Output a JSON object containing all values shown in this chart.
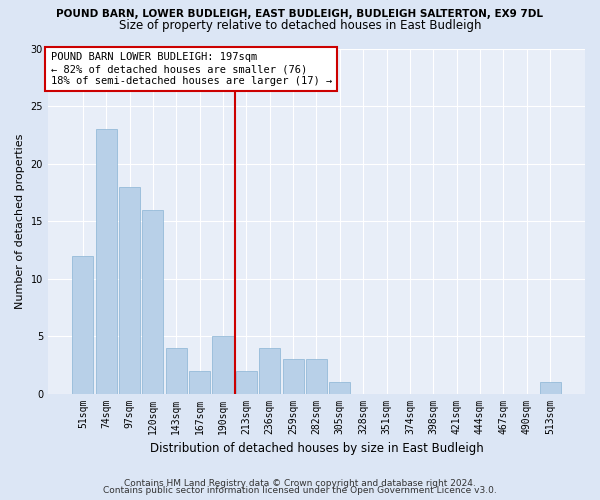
{
  "title1": "POUND BARN, LOWER BUDLEIGH, EAST BUDLEIGH, BUDLEIGH SALTERTON, EX9 7DL",
  "title2": "Size of property relative to detached houses in East Budleigh",
  "xlabel": "Distribution of detached houses by size in East Budleigh",
  "ylabel": "Number of detached properties",
  "categories": [
    "51sqm",
    "74sqm",
    "97sqm",
    "120sqm",
    "143sqm",
    "167sqm",
    "190sqm",
    "213sqm",
    "236sqm",
    "259sqm",
    "282sqm",
    "305sqm",
    "328sqm",
    "351sqm",
    "374sqm",
    "398sqm",
    "421sqm",
    "444sqm",
    "467sqm",
    "490sqm",
    "513sqm"
  ],
  "values": [
    12,
    23,
    18,
    16,
    4,
    2,
    5,
    2,
    4,
    3,
    3,
    1,
    0,
    0,
    0,
    0,
    0,
    0,
    0,
    0,
    1
  ],
  "bar_color": "#b8d0e8",
  "bar_edge_color": "#8ab4d4",
  "vline_x": 6.5,
  "vline_color": "#cc0000",
  "annotation_box_text": "POUND BARN LOWER BUDLEIGH: 197sqm\n← 82% of detached houses are smaller (76)\n18% of semi-detached houses are larger (17) →",
  "annotation_box_color": "#cc0000",
  "ylim": [
    0,
    30
  ],
  "yticks": [
    0,
    5,
    10,
    15,
    20,
    25,
    30
  ],
  "bg_color": "#dce6f5",
  "plot_bg_color": "#e8eef8",
  "footer1": "Contains HM Land Registry data © Crown copyright and database right 2024.",
  "footer2": "Contains public sector information licensed under the Open Government Licence v3.0.",
  "title1_fontsize": 7.5,
  "title2_fontsize": 8.5,
  "xlabel_fontsize": 8.5,
  "ylabel_fontsize": 8,
  "tick_fontsize": 7,
  "annotation_fontsize": 7.5,
  "footer_fontsize": 6.5
}
